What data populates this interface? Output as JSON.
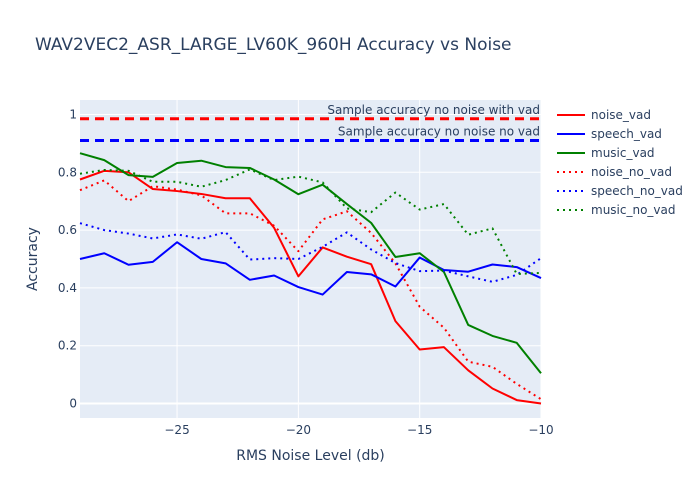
{
  "chart_data": {
    "type": "line",
    "title": "WAV2VEC2_ASR_LARGE_LV60K_960H Accuracy vs Noise",
    "xlabel": "RMS Noise Level (db)",
    "ylabel": "Accuracy",
    "xlim": [
      -29,
      -10
    ],
    "ylim": [
      -0.05,
      1.05
    ],
    "xticks": [
      -25,
      -20,
      -15,
      -10
    ],
    "xtick_labels": [
      "−25",
      "−20",
      "−15",
      "−10"
    ],
    "yticks": [
      0,
      0.2,
      0.4,
      0.6,
      0.8,
      1
    ],
    "ytick_labels": [
      "0",
      "0.2",
      "0.4",
      "0.6",
      "0.8",
      "1"
    ],
    "grid": true,
    "legend_position": "right",
    "x": [
      -29,
      -28,
      -27,
      -26,
      -25,
      -24,
      -23,
      -22,
      -21,
      -20,
      -19,
      -18,
      -17,
      -16,
      -15,
      -14,
      -13,
      -12,
      -11,
      -10
    ],
    "series": [
      {
        "name": "noise_vad",
        "color": "#ff0000",
        "dash": "solid",
        "values": [
          0.775,
          0.805,
          0.8,
          0.742,
          0.735,
          0.725,
          0.71,
          0.71,
          0.608,
          0.44,
          0.54,
          0.508,
          0.482,
          0.285,
          0.187,
          0.195,
          0.115,
          0.052,
          0.012,
          0.0
        ]
      },
      {
        "name": "speech_vad",
        "color": "#0000ff",
        "dash": "solid",
        "values": [
          0.5,
          0.52,
          0.48,
          0.49,
          0.558,
          0.5,
          0.485,
          0.428,
          0.443,
          0.403,
          0.377,
          0.455,
          0.447,
          0.405,
          0.505,
          0.462,
          0.456,
          0.481,
          0.472,
          0.434
        ]
      },
      {
        "name": "music_vad",
        "color": "#008000",
        "dash": "solid",
        "values": [
          0.866,
          0.842,
          0.79,
          0.784,
          0.832,
          0.84,
          0.818,
          0.815,
          0.775,
          0.724,
          0.757,
          0.69,
          0.625,
          0.507,
          0.52,
          0.455,
          0.272,
          0.234,
          0.21,
          0.105
        ]
      },
      {
        "name": "noise_no_vad",
        "color": "#ff0000",
        "dash": "dot",
        "values": [
          0.738,
          0.772,
          0.7,
          0.752,
          0.74,
          0.72,
          0.658,
          0.658,
          0.615,
          0.527,
          0.637,
          0.665,
          0.59,
          0.485,
          0.335,
          0.262,
          0.145,
          0.127,
          0.068,
          0.015
        ]
      },
      {
        "name": "speech_no_vad",
        "color": "#0000ff",
        "dash": "dot",
        "values": [
          0.624,
          0.6,
          0.588,
          0.571,
          0.585,
          0.57,
          0.593,
          0.498,
          0.503,
          0.5,
          0.542,
          0.592,
          0.533,
          0.486,
          0.458,
          0.46,
          0.44,
          0.421,
          0.445,
          0.503
        ]
      },
      {
        "name": "music_no_vad",
        "color": "#008000",
        "dash": "dot",
        "values": [
          0.795,
          0.808,
          0.805,
          0.767,
          0.767,
          0.75,
          0.773,
          0.81,
          0.773,
          0.785,
          0.765,
          0.675,
          0.662,
          0.73,
          0.671,
          0.69,
          0.584,
          0.606,
          0.448,
          0.452
        ]
      }
    ],
    "reference_lines": [
      {
        "y": 0.985,
        "color": "#ff0000",
        "label": "Sample accuracy no noise with vad"
      },
      {
        "y": 0.91,
        "color": "#0000ff",
        "label": "Sample accuracy no noise no vad"
      }
    ]
  }
}
